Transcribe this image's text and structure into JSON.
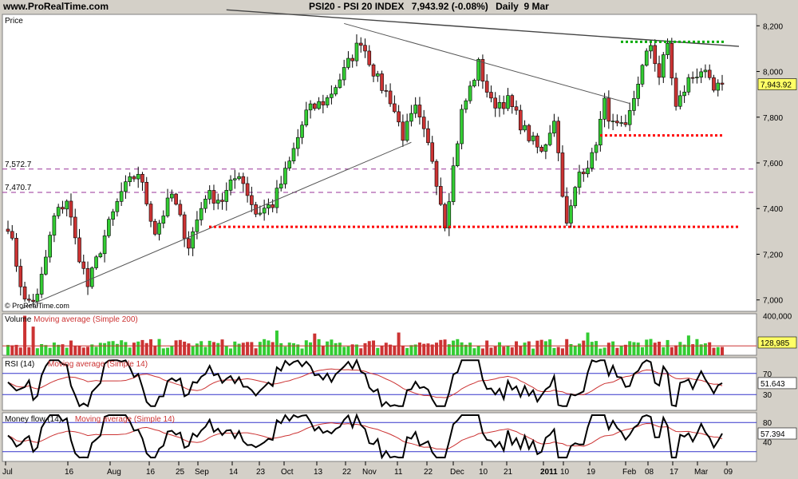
{
  "header": {
    "site": "www.ProRealTime.com",
    "instrument": "PSI20 - PSI 20 INDEX",
    "last": "7,943.92 (-0.08%)",
    "period": "Daily  9 Mar"
  },
  "colors": {
    "up": "#33cc33",
    "down": "#cc3333",
    "bg_panel": "#ffffff",
    "bg_window": "#d4d0c8",
    "support": "#ff0000",
    "resistance": "#00aa00",
    "level_line": "#993399"
  },
  "chart_data": [
    {
      "type": "candlestick",
      "title": "Price",
      "watermark": "© ProRealTime.com",
      "ylim": [
        6950,
        8250
      ],
      "y_ticks": [
        "8,200",
        "8,000",
        "7,800",
        "7,600",
        "7,400",
        "7,200",
        "7,000"
      ],
      "last_value_label": "7,943.92",
      "levels": [
        {
          "label": "7,572.7",
          "value": 7572.7
        },
        {
          "label": "7,470.7",
          "value": 7470.7
        }
      ],
      "support_lines": [
        7320,
        7720
      ],
      "resistance_lines": [
        8130
      ],
      "x_axis_labels": [
        "Jul",
        "16",
        "Aug",
        "16",
        "25",
        "Sep",
        "14",
        "23",
        "Oct",
        "13",
        "22",
        "Nov",
        "11",
        "22",
        "Dec",
        "10",
        "21",
        "2011",
        "10",
        "19",
        "Feb",
        "08",
        "17",
        "Mar",
        "09"
      ],
      "anchors": [
        {
          "i": 0,
          "v": 7330
        },
        {
          "i": 4,
          "v": 6990
        },
        {
          "i": 7,
          "v": 7010
        },
        {
          "i": 11,
          "v": 7360
        },
        {
          "i": 14,
          "v": 7440
        },
        {
          "i": 16,
          "v": 7260
        },
        {
          "i": 19,
          "v": 7060
        },
        {
          "i": 23,
          "v": 7280
        },
        {
          "i": 27,
          "v": 7470
        },
        {
          "i": 31,
          "v": 7560
        },
        {
          "i": 35,
          "v": 7300
        },
        {
          "i": 39,
          "v": 7460
        },
        {
          "i": 43,
          "v": 7240
        },
        {
          "i": 47,
          "v": 7460
        },
        {
          "i": 51,
          "v": 7440
        },
        {
          "i": 55,
          "v": 7560
        },
        {
          "i": 59,
          "v": 7380
        },
        {
          "i": 63,
          "v": 7420
        },
        {
          "i": 67,
          "v": 7600
        },
        {
          "i": 71,
          "v": 7820
        },
        {
          "i": 76,
          "v": 7880
        },
        {
          "i": 80,
          "v": 8000
        },
        {
          "i": 84,
          "v": 8140
        },
        {
          "i": 88,
          "v": 7960
        },
        {
          "i": 91,
          "v": 7880
        },
        {
          "i": 94,
          "v": 7720
        },
        {
          "i": 97,
          "v": 7830
        },
        {
          "i": 101,
          "v": 7620
        },
        {
          "i": 104,
          "v": 7340
        },
        {
          "i": 108,
          "v": 7820
        },
        {
          "i": 112,
          "v": 8030
        },
        {
          "i": 115,
          "v": 7860
        },
        {
          "i": 119,
          "v": 7870
        },
        {
          "i": 123,
          "v": 7740
        },
        {
          "i": 127,
          "v": 7640
        },
        {
          "i": 130,
          "v": 7800
        },
        {
          "i": 133,
          "v": 7320
        },
        {
          "i": 136,
          "v": 7560
        },
        {
          "i": 139,
          "v": 7620
        },
        {
          "i": 142,
          "v": 7860
        },
        {
          "i": 144,
          "v": 7760
        },
        {
          "i": 147,
          "v": 7740
        },
        {
          "i": 150,
          "v": 7960
        },
        {
          "i": 153,
          "v": 8120
        },
        {
          "i": 155,
          "v": 7980
        },
        {
          "i": 157,
          "v": 8120
        },
        {
          "i": 159,
          "v": 7840
        },
        {
          "i": 162,
          "v": 7960
        },
        {
          "i": 165,
          "v": 8010
        },
        {
          "i": 168,
          "v": 7910
        },
        {
          "i": 170,
          "v": 7944
        }
      ]
    },
    {
      "type": "bar",
      "title": "Volume",
      "ma_title": "Moving average (Simple 200)",
      "ylim": [
        0,
        420000
      ],
      "y_ticks": [
        "400,000"
      ],
      "last_value_label": "128,985",
      "base": 110000,
      "spikes": [
        {
          "i": 4,
          "v": 400000
        },
        {
          "i": 6,
          "v": 290000
        },
        {
          "i": 64,
          "v": 250000
        },
        {
          "i": 73,
          "v": 220000
        },
        {
          "i": 93,
          "v": 230000
        },
        {
          "i": 138,
          "v": 230000
        },
        {
          "i": 162,
          "v": 200000
        }
      ],
      "ma_level": 95000
    },
    {
      "type": "line",
      "title": "RSI (14)",
      "ma_title": "Moving average (Simple 14)",
      "ylim": [
        0,
        100
      ],
      "y_ticks": [
        "70",
        "30"
      ],
      "bands": [
        70,
        30
      ],
      "last_value_label": "51.643"
    },
    {
      "type": "line",
      "title": "Money flow (14)",
      "ma_title": "Moving average (Simple 14)",
      "ylim": [
        0,
        100
      ],
      "y_ticks": [
        "80",
        "40"
      ],
      "bands": [
        80,
        20
      ],
      "last_value_label": "57.394"
    }
  ]
}
